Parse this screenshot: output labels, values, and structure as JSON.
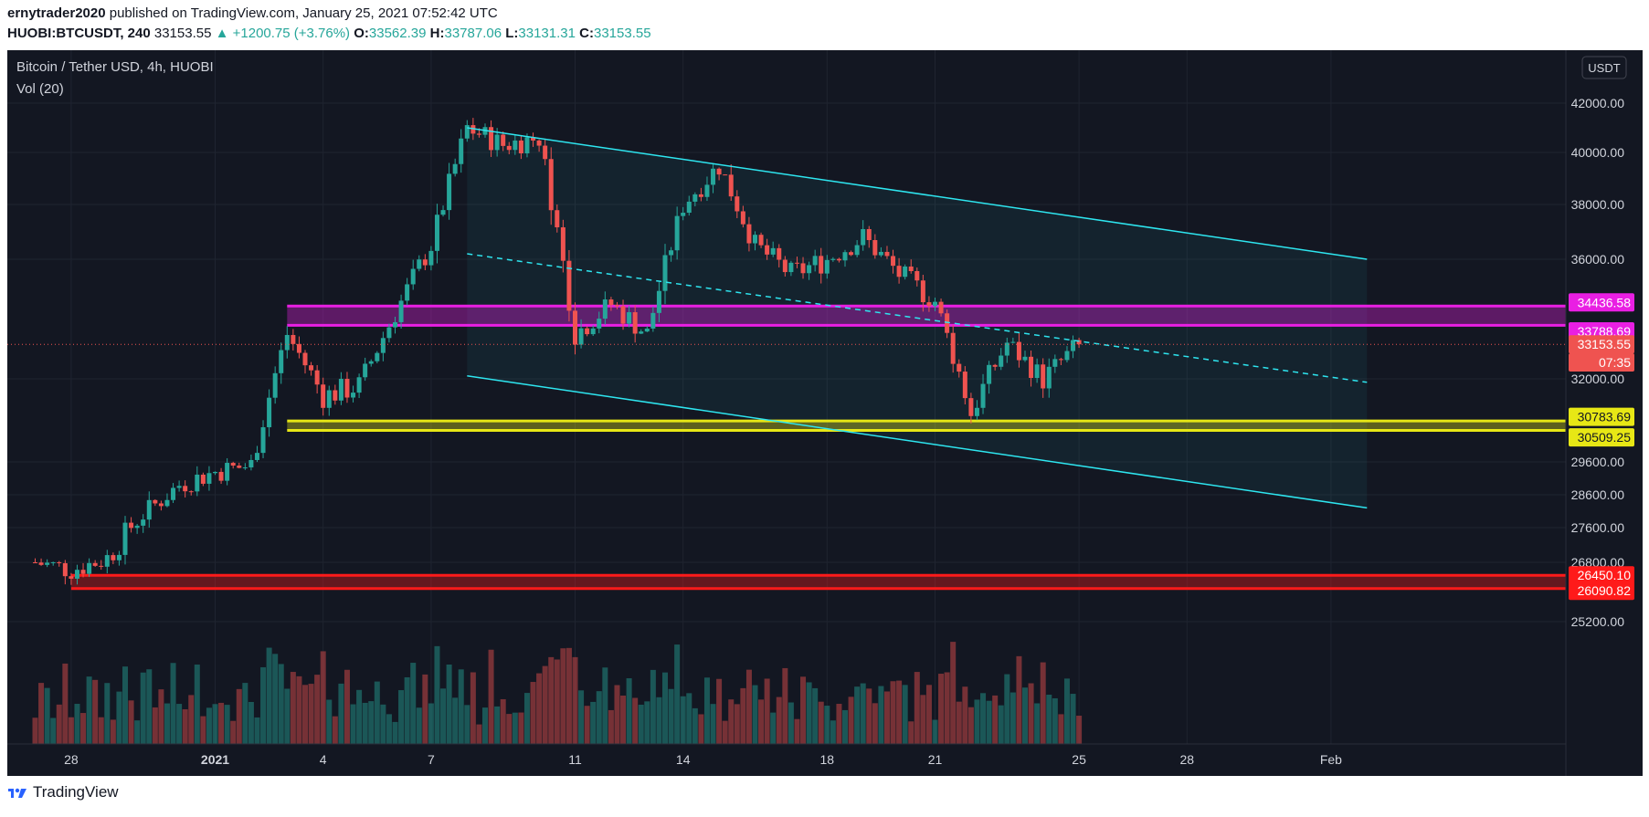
{
  "header": {
    "author": "ernytrader2020",
    "published": "published on TradingView.com, January 25, 2021 07:52:42 UTC",
    "symbol": "HUOBI:BTCUSDT, 240",
    "price": "33153.55",
    "change": "▲ +1200.75 (+3.76%)",
    "o_label": "O:",
    "o": "33562.39",
    "h_label": "H:",
    "h": "33787.06",
    "l_label": "L:",
    "l": "33131.31",
    "c_label": "C:",
    "c": "33153.55"
  },
  "chart": {
    "title": "Bitcoin / Tether USD, 4h, HUOBI",
    "volume_label": "Vol (20)",
    "currency_button": "USDT",
    "colors": {
      "background": "#131722",
      "up": "#26a69a",
      "down": "#ef5350",
      "channel": "#2ee6f0",
      "magenta": "#e91fe3",
      "yellow": "#e7e715",
      "red_zone": "#ff1a1a"
    }
  },
  "footer": {
    "brand": "TradingView",
    "logo_icon": "tradingview-logo-icon"
  },
  "chart_data": {
    "type": "candlestick",
    "ylim": [
      24800,
      43000
    ],
    "y_ticks": [
      "42000.00",
      "40000.00",
      "38000.00",
      "36000.00",
      "32000.00",
      "29600.00",
      "28600.00",
      "27600.00",
      "26800.00",
      "25200.00"
    ],
    "y_tick_values": [
      42000,
      40000,
      38000,
      36000,
      32000,
      29600,
      28600,
      27600,
      26800,
      25200
    ],
    "x_ticks": [
      "28",
      "2021",
      "4",
      "7",
      "11",
      "14",
      "18",
      "21",
      "25",
      "28",
      "Feb"
    ],
    "x_tick_dates": [
      "2020-12-28",
      "2021-01-01",
      "2021-01-04",
      "2021-01-07",
      "2021-01-11",
      "2021-01-14",
      "2021-01-18",
      "2021-01-21",
      "2021-01-25",
      "2021-01-28",
      "2021-02-01"
    ],
    "close_path": [
      [
        "2020-12-27",
        26800
      ],
      [
        "2020-12-28",
        26600
      ],
      [
        "2020-12-29",
        26900
      ],
      [
        "2020-12-30",
        28000
      ],
      [
        "2020-12-31",
        28900
      ],
      [
        "2021-01-01",
        29300
      ],
      [
        "2021-01-02",
        29500
      ],
      [
        "2021-01-03",
        33500
      ],
      [
        "2021-01-04",
        31500
      ],
      [
        "2021-01-05",
        31800
      ],
      [
        "2021-01-06",
        34200
      ],
      [
        "2021-01-07",
        36500
      ],
      [
        "2021-01-08",
        41000
      ],
      [
        "2021-01-09",
        40300
      ],
      [
        "2021-01-10",
        40600
      ],
      [
        "2021-01-11",
        33500
      ],
      [
        "2021-01-12",
        34500
      ],
      [
        "2021-01-13",
        33500
      ],
      [
        "2021-01-14",
        38000
      ],
      [
        "2021-01-15",
        39500
      ],
      [
        "2021-01-16",
        36500
      ],
      [
        "2021-01-17",
        35500
      ],
      [
        "2021-01-18",
        36000
      ],
      [
        "2021-01-19",
        36800
      ],
      [
        "2021-01-20",
        35500
      ],
      [
        "2021-01-21",
        34600
      ],
      [
        "2021-01-22",
        31000
      ],
      [
        "2021-01-23",
        33200
      ],
      [
        "2021-01-24",
        32000
      ],
      [
        "2021-01-25",
        33153.55
      ]
    ],
    "annotations": {
      "channel_upper": [
        [
          "2021-01-08",
          41000
        ],
        [
          "2021-02-02",
          36000
        ]
      ],
      "channel_lower": [
        [
          "2021-01-08",
          32100
        ],
        [
          "2021-02-02",
          28200
        ]
      ],
      "channel_mid": [
        [
          "2021-01-08",
          36200
        ],
        [
          "2021-02-02",
          31900
        ]
      ],
      "zones": [
        {
          "label_top": "34436.58",
          "label_bottom": "33788.69",
          "top": 34436.58,
          "bottom": 33788.69,
          "color": "magenta"
        },
        {
          "label_top": "30783.69",
          "label_bottom": "30509.25",
          "top": 30783.69,
          "bottom": 30509.25,
          "color": "yellow"
        },
        {
          "label_top": "26450.10",
          "label_bottom": "26090.82",
          "top": 26450.1,
          "bottom": 26090.82,
          "color": "red"
        }
      ],
      "last_price_label": "33153.55",
      "countdown_label": "07:35"
    }
  }
}
